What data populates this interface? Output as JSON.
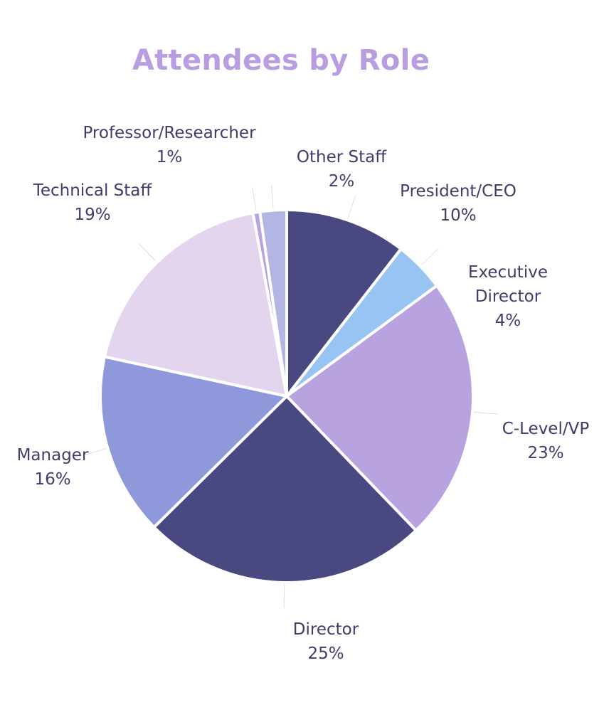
{
  "chart_data": {
    "type": "pie",
    "title": "Attendees by Role",
    "slices": [
      {
        "label": "President/CEO",
        "label_lines": [
          "President/CEO"
        ],
        "percent_text": "10%",
        "value": 10.5,
        "color": "#4a4880"
      },
      {
        "label": "Executive Director",
        "label_lines": [
          "Executive",
          "Director"
        ],
        "percent_text": "4%",
        "value": 4.4,
        "color": "#97c4f2"
      },
      {
        "label": "C-Level/VP",
        "label_lines": [
          "C-Level/VP"
        ],
        "percent_text": "23%",
        "value": 22.9,
        "color": "#b8a2df"
      },
      {
        "label": "Director",
        "label_lines": [
          "Director"
        ],
        "percent_text": "25%",
        "value": 24.8,
        "color": "#4a4880"
      },
      {
        "label": "Manager",
        "label_lines": [
          "Manager"
        ],
        "percent_text": "16%",
        "value": 15.8,
        "color": "#8f98da"
      },
      {
        "label": "Technical Staff",
        "label_lines": [
          "Technical Staff"
        ],
        "percent_text": "19%",
        "value": 18.7,
        "color": "#e3d5ee"
      },
      {
        "label": "Professor/Researcher",
        "label_lines": [
          "Professor/Researcher"
        ],
        "percent_text": "1%",
        "value": 0.6,
        "color": "#b8a2df"
      },
      {
        "label": "Other Staff",
        "label_lines": [
          "Other Staff"
        ],
        "percent_text": "2%",
        "value": 2.3,
        "color": "#b3b5e3"
      }
    ]
  }
}
